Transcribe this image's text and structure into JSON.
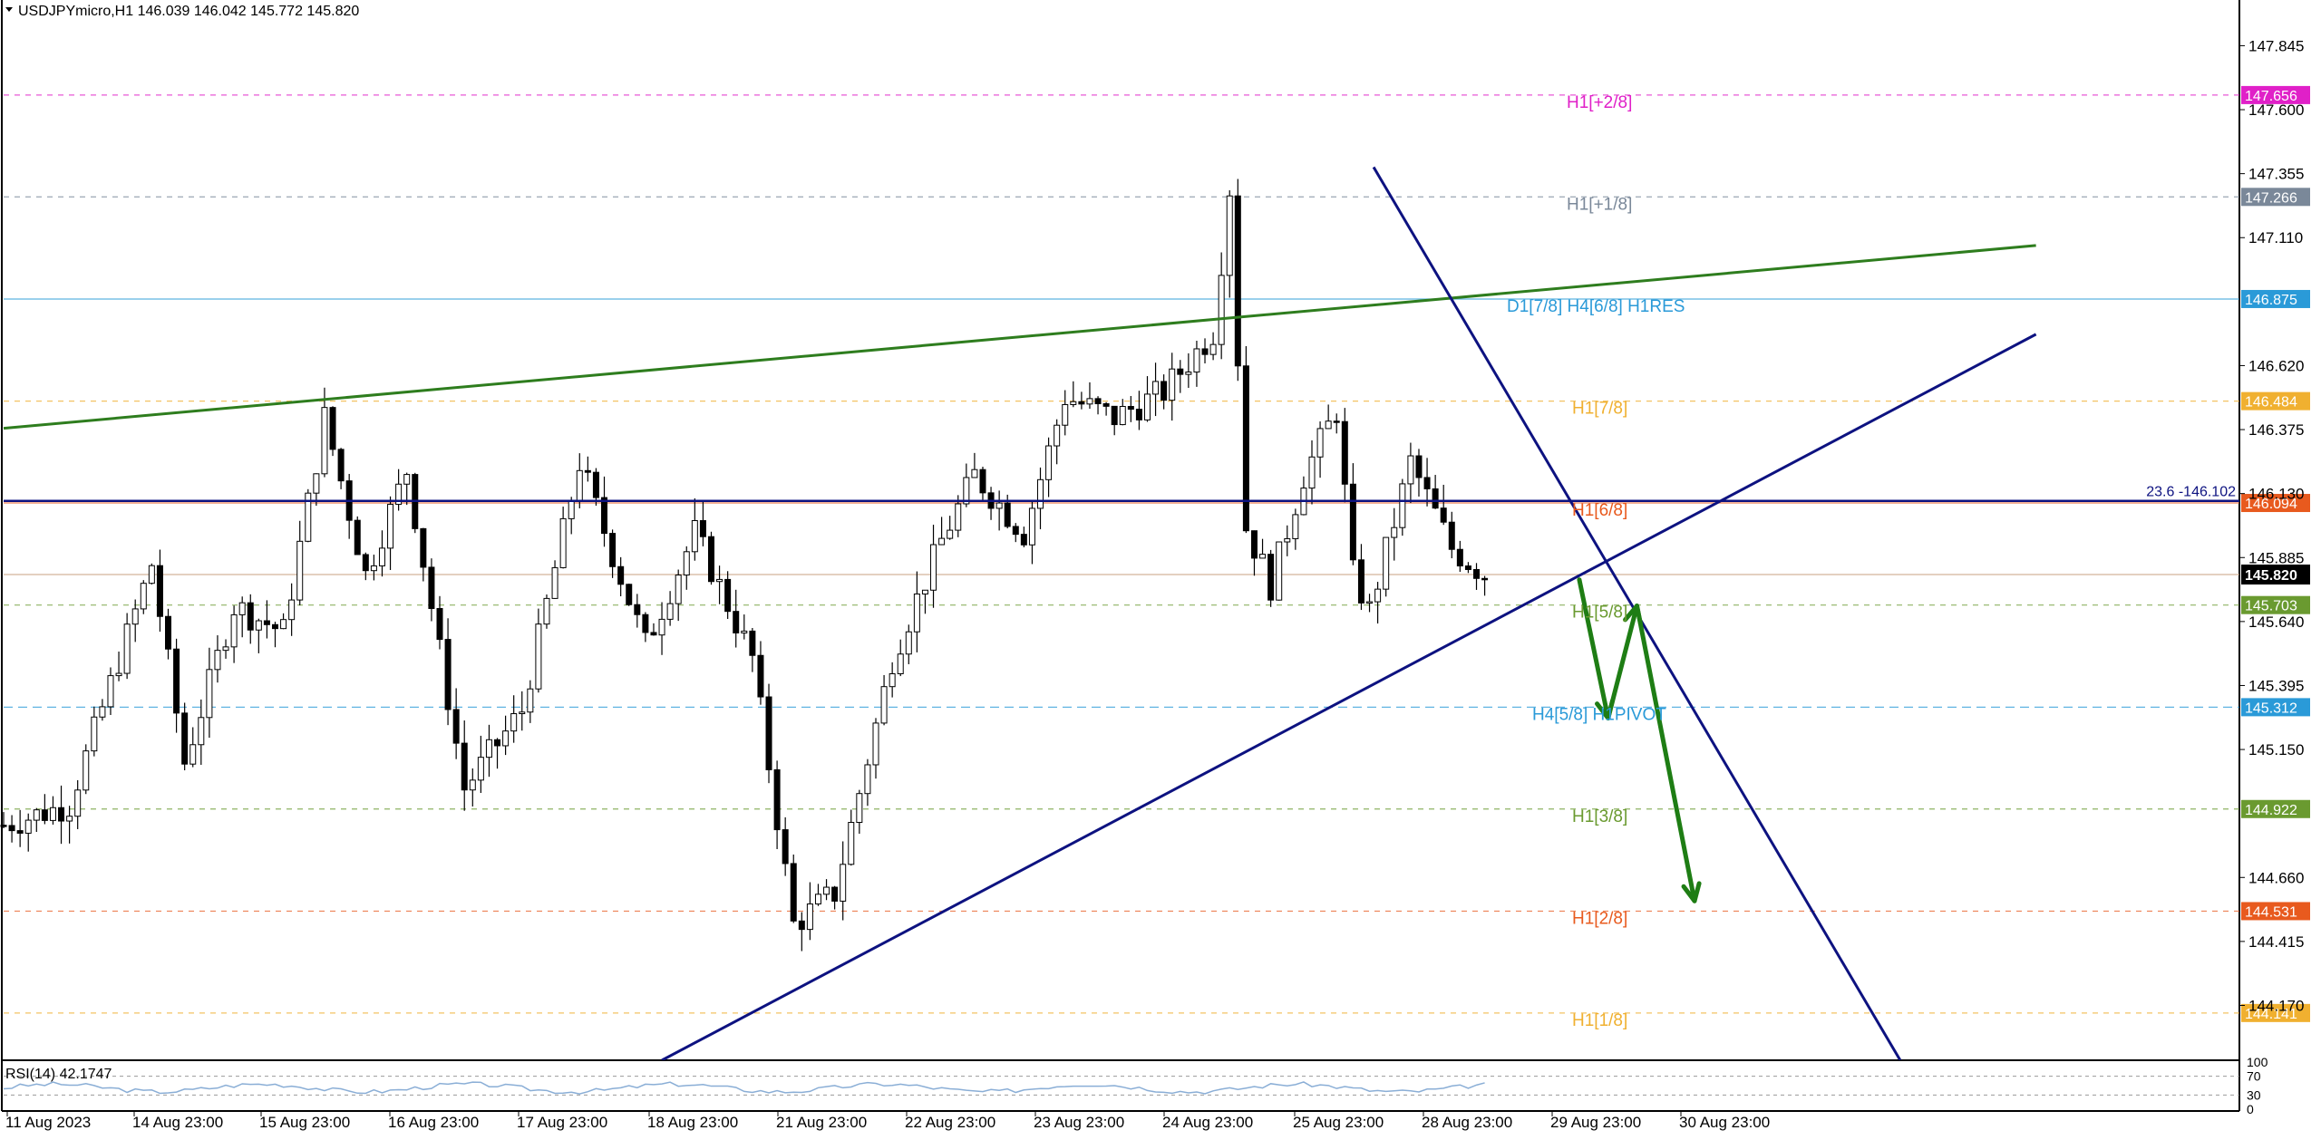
{
  "header": {
    "symbol_line": "USDJPYmicro,H1  146.039 146.042 145.772 145.820"
  },
  "colors": {
    "green_trend": "#2e7d1e",
    "navy_trend": "#0d1280",
    "arrow_green": "#1e7d14",
    "candle": "#000000",
    "grid_border": "#000000",
    "fib_line": "#0d1280"
  },
  "chart_data": {
    "type": "candlestick",
    "symbol": "USDJPYmicro",
    "timeframe": "H1",
    "ohlc_last": {
      "open": 146.039,
      "high": 146.042,
      "low": 145.772,
      "close": 145.82
    },
    "current_price": 145.82,
    "ylim": [
      143.96,
      148.02
    ],
    "y_ticks": [
      147.845,
      147.6,
      147.355,
      147.11,
      146.62,
      146.375,
      146.13,
      145.885,
      145.64,
      145.395,
      145.15,
      144.66,
      144.415,
      144.17
    ],
    "y_tick_labels": [
      "147.845",
      "147.600",
      "147.355",
      "147.110",
      "146.620",
      "146.375",
      "146.130",
      "145.885",
      "145.640",
      "145.395",
      "145.150",
      "144.660",
      "144.415",
      "144.170"
    ],
    "x_labels": [
      "11 Aug 2023",
      "14 Aug 23:00",
      "15 Aug 23:00",
      "16 Aug 23:00",
      "17 Aug 23:00",
      "18 Aug 23:00",
      "21 Aug 23:00",
      "22 Aug 23:00",
      "23 Aug 23:00",
      "24 Aug 23:00",
      "25 Aug 23:00",
      "28 Aug 23:00",
      "29 Aug 23:00",
      "30 Aug 23:00"
    ],
    "x_range_bars": [
      0,
      212
    ],
    "key_points": [
      {
        "bar": 0,
        "price": 144.86
      },
      {
        "bar": 8,
        "price": 144.94
      },
      {
        "bar": 18,
        "price": 145.86
      },
      {
        "bar": 22,
        "price": 145.1
      },
      {
        "bar": 28,
        "price": 145.7
      },
      {
        "bar": 34,
        "price": 145.6
      },
      {
        "bar": 39,
        "price": 146.42
      },
      {
        "bar": 44,
        "price": 145.82
      },
      {
        "bar": 49,
        "price": 146.22
      },
      {
        "bar": 56,
        "price": 145.0
      },
      {
        "bar": 63,
        "price": 145.3
      },
      {
        "bar": 70,
        "price": 146.25
      },
      {
        "bar": 78,
        "price": 145.55
      },
      {
        "bar": 84,
        "price": 145.98
      },
      {
        "bar": 91,
        "price": 145.5
      },
      {
        "bar": 96,
        "price": 144.48
      },
      {
        "bar": 101,
        "price": 144.6
      },
      {
        "bar": 108,
        "price": 145.5
      },
      {
        "bar": 114,
        "price": 145.95
      },
      {
        "bar": 118,
        "price": 146.2
      },
      {
        "bar": 124,
        "price": 145.98
      },
      {
        "bar": 129,
        "price": 146.5
      },
      {
        "bar": 135,
        "price": 146.42
      },
      {
        "bar": 141,
        "price": 146.52
      },
      {
        "bar": 147,
        "price": 146.75
      },
      {
        "bar": 149,
        "price": 147.3
      },
      {
        "bar": 151,
        "price": 146.0
      },
      {
        "bar": 154,
        "price": 145.78
      },
      {
        "bar": 158,
        "price": 146.2
      },
      {
        "bar": 162,
        "price": 146.45
      },
      {
        "bar": 164,
        "price": 145.82
      },
      {
        "bar": 166,
        "price": 145.68
      },
      {
        "bar": 171,
        "price": 146.25
      },
      {
        "bar": 176,
        "price": 145.92
      },
      {
        "bar": 180,
        "price": 145.82
      }
    ],
    "murrey_levels": [
      {
        "label": "H1[+2/8]",
        "price": 147.656,
        "tag": "147.656",
        "color": "#e020c8",
        "tag_text": "#ffffff",
        "dash": "6,6"
      },
      {
        "label": "H1[+1/8]",
        "price": 147.266,
        "tag": "147.266",
        "color": "#7a8899",
        "tag_text": "#ffffff",
        "dash": "6,6"
      },
      {
        "label": "D1[7/8] H4[6/8] H1RES",
        "price": 146.875,
        "tag": "146.875",
        "color": "#2a9ad8",
        "tag_text": "#ffffff",
        "dash": ""
      },
      {
        "label": "H1[7/8]",
        "price": 146.484,
        "tag": "146.484",
        "color": "#f0b030",
        "tag_text": "#ffffff",
        "dash": "6,6"
      },
      {
        "label": "H1[6/8]",
        "price": 146.094,
        "tag": "146.094",
        "color": "#e85a1e",
        "tag_text": "#ffffff",
        "dash": ""
      },
      {
        "label": "H1[5/8]",
        "price": 145.703,
        "tag": "145.703",
        "color": "#6a9a30",
        "tag_text": "#ffffff",
        "dash": "6,6"
      },
      {
        "label": "H4[5/8] H1PIVOT",
        "price": 145.312,
        "tag": "145.312",
        "color": "#2a9ad8",
        "tag_text": "#ffffff",
        "dash": "10,6"
      },
      {
        "label": "H1[3/8]",
        "price": 144.922,
        "tag": "144.922",
        "color": "#6a9a30",
        "tag_text": "#ffffff",
        "dash": "6,6"
      },
      {
        "label": "H1[2/8]",
        "price": 144.531,
        "tag": "144.531",
        "color": "#e85a1e",
        "tag_text": "#ffffff",
        "dash": "6,6"
      },
      {
        "label": "H1[1/8]",
        "price": 144.141,
        "tag": "144.141",
        "color": "#f0b030",
        "tag_text": "#ffffff",
        "dash": "6,6"
      }
    ],
    "fib_level": {
      "label": "23.6 -146.102",
      "price": 146.102
    },
    "current_price_tag": "145.820",
    "trendlines": [
      {
        "name": "green-resistance-trendline",
        "from": [
          0,
          146.38
        ],
        "to": [
          247,
          147.08
        ],
        "color": "#2e7d1e"
      },
      {
        "name": "navy-support-trendline",
        "from": [
          80,
          143.96
        ],
        "to": [
          247,
          146.74
        ],
        "color": "#0d1280"
      },
      {
        "name": "navy-descending-trendline",
        "from": [
          166.5,
          147.38
        ],
        "to": [
          230.5,
          143.96
        ],
        "color": "#0d1280"
      }
    ],
    "projection_path": [
      [
        191.5,
        145.8
      ],
      [
        195,
        145.27
      ],
      [
        198.5,
        145.7
      ],
      [
        205.5,
        144.57
      ]
    ],
    "rsi": {
      "label": "RSI(14) 42.1747",
      "value": 42.1747,
      "scale_labels": [
        "100",
        "70",
        "30",
        "0"
      ]
    }
  }
}
